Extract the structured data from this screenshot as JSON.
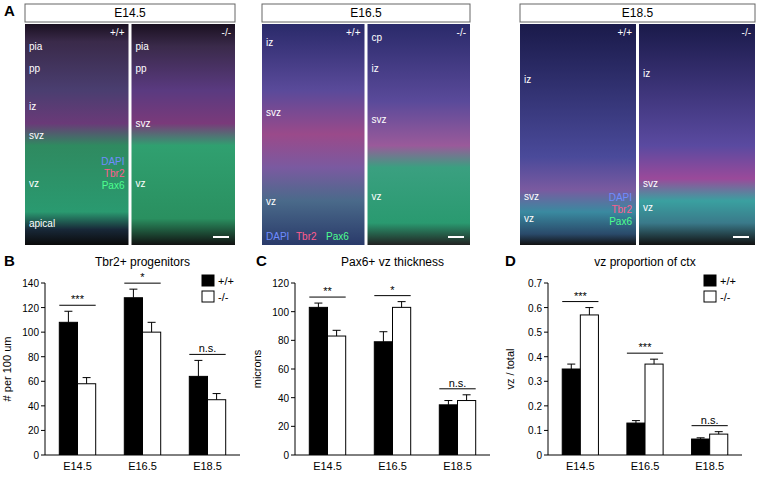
{
  "panel_a": {
    "label": "A",
    "stains": [
      {
        "name": "DAPI",
        "color": "#6f8cff"
      },
      {
        "name": "Tbr2",
        "color": "#ff5c8f"
      },
      {
        "name": "Pax6",
        "color": "#4dff8f"
      }
    ],
    "columns": [
      {
        "title": "E14.5",
        "images": [
          {
            "genotype": "+/+",
            "layers": [
              "pia",
              "pp",
              "iz",
              "svz",
              "vz",
              "apical"
            ]
          },
          {
            "genotype": "-/-",
            "layers": [
              "pia",
              "pp",
              "svz",
              "vz"
            ]
          }
        ]
      },
      {
        "title": "E16.5",
        "images": [
          {
            "genotype": "+/+",
            "layers": [
              "iz",
              "svz",
              "vz"
            ]
          },
          {
            "genotype": "-/-",
            "layers": [
              "cp",
              "iz",
              "svz",
              "vz"
            ]
          }
        ]
      },
      {
        "title": "E18.5",
        "images": [
          {
            "genotype": "+/+",
            "layers": [
              "iz",
              "svz",
              "vz"
            ]
          },
          {
            "genotype": "-/-",
            "layers": [
              "iz",
              "svz",
              "vz"
            ]
          }
        ]
      }
    ]
  },
  "chart_data": [
    {
      "type": "bar",
      "panel_label": "B",
      "title": "Tbr2+ progenitors",
      "y_label": "# per 100 um",
      "categories": [
        "E14.5",
        "E16.5",
        "E18.5"
      ],
      "series": [
        {
          "name": "+/+",
          "color": "#000000",
          "values": [
            108,
            128,
            64
          ],
          "errors": [
            9,
            7,
            13
          ]
        },
        {
          "name": "-/-",
          "color": "#ffffff",
          "values": [
            58,
            100,
            45
          ],
          "errors": [
            5,
            8,
            5
          ]
        }
      ],
      "annotations": [
        "***",
        "*",
        "n.s."
      ],
      "ylim": [
        0,
        140
      ],
      "yticks": [
        0,
        20,
        40,
        60,
        80,
        100,
        120,
        140
      ],
      "legend": "top-right"
    },
    {
      "type": "bar",
      "panel_label": "C",
      "title": "Pax6+ vz thickness",
      "y_label": "microns",
      "categories": [
        "E14.5",
        "E16.5",
        "E18.5"
      ],
      "series": [
        {
          "name": "+/+",
          "color": "#000000",
          "values": [
            103,
            79,
            35
          ],
          "errors": [
            3,
            7,
            3
          ]
        },
        {
          "name": "-/-",
          "color": "#ffffff",
          "values": [
            83,
            103,
            38
          ],
          "errors": [
            4,
            4,
            4
          ]
        }
      ],
      "annotations": [
        "**",
        "*",
        "n.s."
      ],
      "ylim": [
        0,
        120
      ],
      "yticks": [
        0,
        20,
        40,
        60,
        80,
        100,
        120
      ],
      "legend": "none"
    },
    {
      "type": "bar",
      "panel_label": "D",
      "title": "vz proportion of ctx",
      "y_label": "vz / total",
      "categories": [
        "E14.5",
        "E16.5",
        "E18.5"
      ],
      "series": [
        {
          "name": "+/+",
          "color": "#000000",
          "values": [
            0.35,
            0.13,
            0.065
          ],
          "errors": [
            0.02,
            0.01,
            0.005
          ]
        },
        {
          "name": "-/-",
          "color": "#ffffff",
          "values": [
            0.57,
            0.37,
            0.085
          ],
          "errors": [
            0.03,
            0.02,
            0.01
          ]
        }
      ],
      "annotations": [
        "***",
        "***",
        "n.s."
      ],
      "ylim": [
        0,
        0.7
      ],
      "yticks": [
        0,
        0.1,
        0.2,
        0.3,
        0.4,
        0.5,
        0.6,
        0.7
      ],
      "legend": "top-right"
    }
  ]
}
